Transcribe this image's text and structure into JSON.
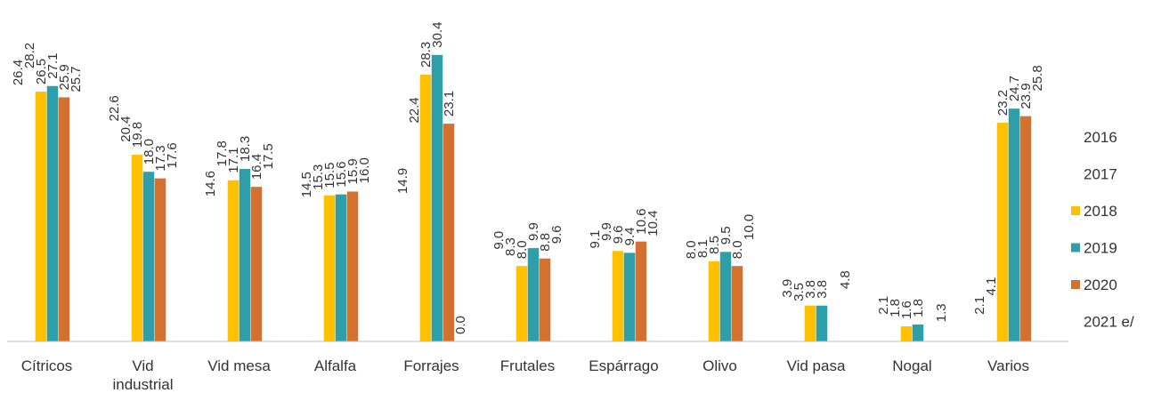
{
  "chart_data": {
    "type": "bar",
    "categories": [
      [
        "Cítricos"
      ],
      [
        "Vid",
        "industrial"
      ],
      [
        "Vid mesa"
      ],
      [
        "Alfalfa"
      ],
      [
        "Forrajes"
      ],
      [
        "Frutales"
      ],
      [
        "Espárrago"
      ],
      [
        "Olivo"
      ],
      [
        "Vid pasa"
      ],
      [
        "Nogal"
      ],
      [
        "Varios"
      ]
    ],
    "series": [
      {
        "name": "2016",
        "color": null,
        "values": [
          26.4,
          22.6,
          14.6,
          14.5,
          14.9,
          9.0,
          9.1,
          8.0,
          3.9,
          2.1,
          2.1
        ]
      },
      {
        "name": "2017",
        "color": null,
        "values": [
          28.2,
          20.4,
          17.8,
          15.3,
          22.4,
          8.3,
          9.9,
          8.1,
          3.5,
          1.8,
          4.1
        ]
      },
      {
        "name": "2018",
        "color": "#FFC000",
        "values": [
          26.5,
          19.8,
          17.1,
          15.5,
          28.3,
          8.0,
          9.6,
          8.5,
          3.8,
          1.6,
          23.2
        ]
      },
      {
        "name": "2019",
        "color": "#2E9FA8",
        "values": [
          27.1,
          18.0,
          18.3,
          15.6,
          30.4,
          9.9,
          9.4,
          9.5,
          3.8,
          1.8,
          24.7
        ]
      },
      {
        "name": "2020",
        "color": "#D4712E",
        "values": [
          25.9,
          17.3,
          16.4,
          15.9,
          23.1,
          8.8,
          10.6,
          8.0,
          null,
          null,
          23.9
        ]
      },
      {
        "name": "2021 e/",
        "color": null,
        "values": [
          25.7,
          17.6,
          17.5,
          16.0,
          0.0,
          9.6,
          10.4,
          10.0,
          4.8,
          1.3,
          25.8
        ]
      }
    ],
    "legend_position": "right",
    "grid": false
  }
}
